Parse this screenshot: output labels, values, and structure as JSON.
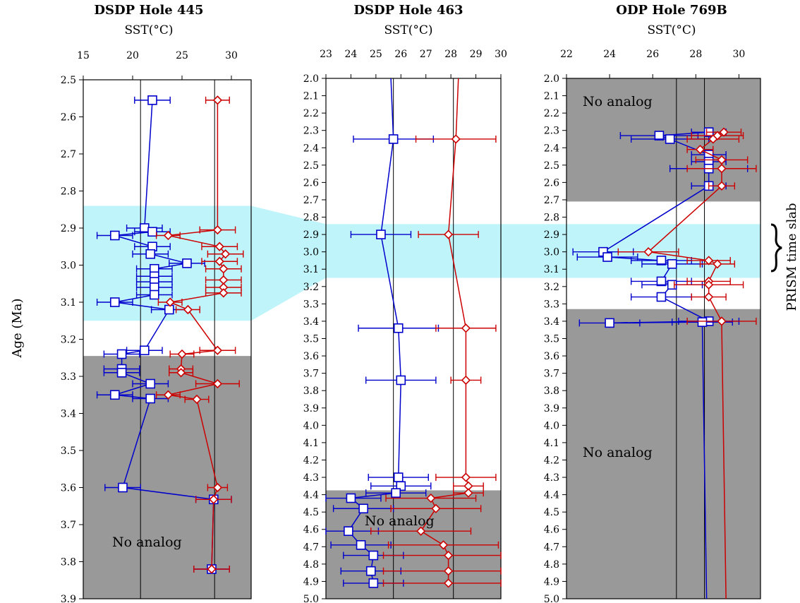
{
  "chart_data": [
    {
      "type": "line",
      "title": "DSDP Hole 445",
      "xlabel": "SST(°C)",
      "ylabel": "Age (Ma)",
      "xlim": [
        15,
        32
      ],
      "xticks": [
        15,
        20,
        25,
        30
      ],
      "ylim": [
        2.5,
        3.9
      ],
      "yticks": [
        "2.5",
        "2.6",
        "2.7",
        "2.8",
        "2.9",
        "3.0",
        "3.1",
        "3.2",
        "3.3",
        "3.4",
        "3.5",
        "3.6",
        "3.7",
        "3.8",
        "3.9"
      ],
      "ref_lines": [
        20.8,
        28.3
      ],
      "prism_band": [
        2.84,
        3.15
      ],
      "no_analog_from": 3.245,
      "annotations": [
        "No analog"
      ],
      "series": [
        {
          "color": "#0000cc",
          "marker": "square",
          "points": [
            {
              "y": 2.555,
              "x": 22.0,
              "err": 1.8
            },
            {
              "y": 2.9,
              "x": 21.2,
              "err": 1.8
            },
            {
              "y": 2.91,
              "x": 22.0,
              "err": 1.8
            },
            {
              "y": 2.92,
              "x": 18.2,
              "err": 1.8
            },
            {
              "y": 2.95,
              "x": 22.0,
              "err": 1.8
            },
            {
              "y": 2.97,
              "x": 21.8,
              "err": 1.8
            },
            {
              "y": 2.995,
              "x": 25.5,
              "err": 1.8
            },
            {
              "y": 3.01,
              "x": 22.2,
              "err": 1.8
            },
            {
              "y": 3.03,
              "x": 22.2,
              "err": 1.8
            },
            {
              "y": 3.045,
              "x": 22.2,
              "err": 1.8
            },
            {
              "y": 3.06,
              "x": 22.2,
              "err": 1.8
            },
            {
              "y": 3.08,
              "x": 22.2,
              "err": 1.8
            },
            {
              "y": 3.1,
              "x": 18.2,
              "err": 1.8
            },
            {
              "y": 3.12,
              "x": 23.7,
              "err": 1.8
            },
            {
              "y": 3.23,
              "x": 21.2,
              "err": 1.8
            },
            {
              "y": 3.24,
              "x": 18.9,
              "err": 1.8
            },
            {
              "y": 3.28,
              "x": 18.9,
              "err": 1.8
            },
            {
              "y": 3.29,
              "x": 18.9,
              "err": 1.8
            },
            {
              "y": 3.32,
              "x": 21.8,
              "err": 1.8
            },
            {
              "y": 3.35,
              "x": 18.2,
              "err": 1.8
            },
            {
              "y": 3.36,
              "x": 21.8,
              "err": 1.8
            },
            {
              "y": 3.6,
              "x": 19.0,
              "err": 1.8
            },
            {
              "y": 3.632,
              "x": 28.2,
              "err": 1.8
            },
            {
              "y": 3.82,
              "x": 28.0,
              "err": 1.8
            }
          ]
        },
        {
          "color": "#cc0000",
          "marker": "diamond",
          "points": [
            {
              "y": 2.555,
              "x": 28.6,
              "err": 1.2
            },
            {
              "y": 2.905,
              "x": 28.6,
              "err": 1.8
            },
            {
              "y": 2.92,
              "x": 23.6,
              "err": 1.2
            },
            {
              "y": 2.95,
              "x": 28.8,
              "err": 1.8
            },
            {
              "y": 2.97,
              "x": 29.4,
              "err": 1.8
            },
            {
              "y": 2.99,
              "x": 28.8,
              "err": 1.8
            },
            {
              "y": 3.01,
              "x": 29.2,
              "err": 1.8
            },
            {
              "y": 3.04,
              "x": 29.2,
              "err": 1.8
            },
            {
              "y": 3.06,
              "x": 29.2,
              "err": 1.8
            },
            {
              "y": 3.075,
              "x": 29.2,
              "err": 1.8
            },
            {
              "y": 3.1,
              "x": 23.8,
              "err": 1.2
            },
            {
              "y": 3.12,
              "x": 25.6,
              "err": 1.2
            },
            {
              "y": 3.23,
              "x": 28.6,
              "err": 1.8
            },
            {
              "y": 3.24,
              "x": 25.0,
              "err": 1.2
            },
            {
              "y": 3.28,
              "x": 24.9,
              "err": 1.2
            },
            {
              "y": 3.29,
              "x": 24.9,
              "err": 1.2
            },
            {
              "y": 3.32,
              "x": 28.6,
              "err": 2.2
            },
            {
              "y": 3.35,
              "x": 23.6,
              "err": 1.2
            },
            {
              "y": 3.362,
              "x": 26.5,
              "err": 1.2
            },
            {
              "y": 3.6,
              "x": 28.6,
              "err": 1.0
            },
            {
              "y": 3.632,
              "x": 28.2,
              "err": 1.8
            },
            {
              "y": 3.82,
              "x": 28.0,
              "err": 1.8
            }
          ]
        }
      ]
    },
    {
      "type": "line",
      "title": "DSDP Hole 463",
      "xlabel": "SST(°C)",
      "xlim": [
        23,
        30
      ],
      "xticks": [
        23,
        24,
        25,
        26,
        27,
        28,
        29,
        30
      ],
      "ylim": [
        2.0,
        5.0
      ],
      "yticks": [
        "2.0",
        "2.1",
        "2.2",
        "2.3",
        "2.4",
        "2.5",
        "2.6",
        "2.7",
        "2.8",
        "2.9",
        "3.0",
        "3.1",
        "3.2",
        "3.3",
        "3.4",
        "3.5",
        "3.6",
        "3.7",
        "3.8",
        "3.9",
        "4.0",
        "4.1",
        "4.2",
        "4.3",
        "4.4",
        "4.5",
        "4.6",
        "4.7",
        "4.8",
        "4.9",
        "5.0"
      ],
      "ref_lines": [
        25.7,
        28.1
      ],
      "prism_band": [
        2.84,
        3.15
      ],
      "no_analog_from": 4.375,
      "annotations": [
        "No analog"
      ],
      "series": [
        {
          "color": "#0000cc",
          "marker": "square",
          "points": [
            {
              "y": 2.35,
              "x": 25.7,
              "err": 1.6
            },
            {
              "y": 2.9,
              "x": 25.2,
              "err": 1.2
            },
            {
              "y": 3.44,
              "x": 25.9,
              "err": 1.6
            },
            {
              "y": 3.74,
              "x": 26.0,
              "err": 1.4
            },
            {
              "y": 4.3,
              "x": 25.9,
              "err": 1.2
            },
            {
              "y": 4.35,
              "x": 26.0,
              "err": 1.2
            },
            {
              "y": 4.39,
              "x": 25.8,
              "err": 1.2
            },
            {
              "y": 4.42,
              "x": 24.0,
              "err": 1.2
            },
            {
              "y": 4.48,
              "x": 24.5,
              "err": 1.2
            },
            {
              "y": 4.61,
              "x": 23.9,
              "err": 1.2
            },
            {
              "y": 4.69,
              "x": 24.4,
              "err": 1.2
            },
            {
              "y": 4.75,
              "x": 24.9,
              "err": 1.2
            },
            {
              "y": 4.84,
              "x": 24.8,
              "err": 1.2
            },
            {
              "y": 4.91,
              "x": 24.9,
              "err": 1.2
            }
          ],
          "leading_line": [
            {
              "y": 2.0,
              "x": 25.6
            }
          ]
        },
        {
          "color": "#cc0000",
          "marker": "diamond",
          "points": [
            {
              "y": 2.35,
              "x": 28.2,
              "err": 1.6
            },
            {
              "y": 2.9,
              "x": 27.9,
              "err": 1.2
            },
            {
              "y": 3.44,
              "x": 28.6,
              "err": 1.2
            },
            {
              "y": 3.74,
              "x": 28.6,
              "err": 0.6
            },
            {
              "y": 4.3,
              "x": 28.6,
              "err": 1.2
            },
            {
              "y": 4.35,
              "x": 28.7,
              "err": 0.6
            },
            {
              "y": 4.39,
              "x": 28.7,
              "err": 0.6
            },
            {
              "y": 4.42,
              "x": 27.2,
              "err": 1.8
            },
            {
              "y": 4.48,
              "x": 27.4,
              "err": 1.8
            },
            {
              "y": 4.61,
              "x": 26.8,
              "err": 2.0
            },
            {
              "y": 4.69,
              "x": 27.7,
              "err": 2.2
            },
            {
              "y": 4.75,
              "x": 27.9,
              "err": 2.6
            },
            {
              "y": 4.84,
              "x": 27.9,
              "err": 2.6
            },
            {
              "y": 4.91,
              "x": 27.9,
              "err": 2.6
            }
          ],
          "leading_line": [
            {
              "y": 2.0,
              "x": 28.3
            }
          ]
        }
      ]
    },
    {
      "type": "line",
      "title": "ODP Hole 769B",
      "xlabel": "SST(°C)",
      "xlim": [
        22,
        31
      ],
      "xticks": [
        22,
        24,
        26,
        28,
        30
      ],
      "ylim": [
        2.0,
        5.0
      ],
      "yticks": [
        "2.0",
        "2.1",
        "2.2",
        "2.3",
        "2.4",
        "2.5",
        "2.6",
        "2.7",
        "2.8",
        "2.9",
        "3.0",
        "3.1",
        "3.2",
        "3.3",
        "3.4",
        "3.5",
        "3.6",
        "3.7",
        "3.8",
        "3.9",
        "4.0",
        "4.1",
        "4.2",
        "4.3",
        "4.4",
        "4.5",
        "4.6",
        "4.7",
        "4.8",
        "4.9",
        "5.0"
      ],
      "ref_lines": [
        27.1,
        28.4
      ],
      "prism_band": [
        2.84,
        3.15
      ],
      "no_analog_bands": [
        [
          2.0,
          2.71
        ],
        [
          3.33,
          5.0
        ]
      ],
      "annotations": [
        "No analog",
        "No analog",
        "PRISM time slab"
      ],
      "series": [
        {
          "color": "#0000cc",
          "marker": "square",
          "points": [
            {
              "y": 2.31,
              "x": 28.6,
              "err": 0.8
            },
            {
              "y": 2.33,
              "x": 26.3,
              "err": 1.8
            },
            {
              "y": 2.35,
              "x": 26.8,
              "err": 1.8
            },
            {
              "y": 2.44,
              "x": 28.6,
              "err": 0.8
            },
            {
              "y": 2.48,
              "x": 28.6,
              "err": 0.8
            },
            {
              "y": 2.52,
              "x": 28.6,
              "err": 1.8
            },
            {
              "y": 2.62,
              "x": 28.6,
              "err": 0.8
            },
            {
              "y": 3.0,
              "x": 23.7,
              "err": 1.4
            },
            {
              "y": 3.03,
              "x": 23.9,
              "err": 1.4
            },
            {
              "y": 3.05,
              "x": 26.4,
              "err": 1.4
            },
            {
              "y": 3.07,
              "x": 26.9,
              "err": 1.4
            },
            {
              "y": 3.17,
              "x": 26.4,
              "err": 1.4
            },
            {
              "y": 3.19,
              "x": 26.9,
              "err": 1.4
            },
            {
              "y": 3.26,
              "x": 26.4,
              "err": 1.4
            },
            {
              "y": 3.4,
              "x": 28.6,
              "err": 1.4
            },
            {
              "y": 3.41,
              "x": 24.0,
              "err": 1.4
            },
            {
              "y": 3.405,
              "x": 28.3,
              "err": 1.4
            }
          ],
          "trailing_line": [
            {
              "y": 3.42,
              "x": 28.3
            },
            {
              "y": 5.0,
              "x": 28.5
            }
          ]
        },
        {
          "color": "#cc0000",
          "marker": "diamond",
          "points": [
            {
              "y": 2.31,
              "x": 29.3,
              "err": 0.8
            },
            {
              "y": 2.33,
              "x": 29.0,
              "err": 1.2
            },
            {
              "y": 2.35,
              "x": 28.8,
              "err": 1.2
            },
            {
              "y": 2.41,
              "x": 28.2,
              "err": 0.6
            },
            {
              "y": 2.47,
              "x": 29.2,
              "err": 1.2
            },
            {
              "y": 2.52,
              "x": 29.2,
              "err": 1.6
            },
            {
              "y": 2.62,
              "x": 29.2,
              "err": 0.6
            },
            {
              "y": 3.0,
              "x": 25.8,
              "err": 1.4
            },
            {
              "y": 3.05,
              "x": 28.6,
              "err": 1.0
            },
            {
              "y": 3.07,
              "x": 29.0,
              "err": 0.8
            },
            {
              "y": 3.17,
              "x": 28.6,
              "err": 1.0
            },
            {
              "y": 3.19,
              "x": 28.6,
              "err": 1.6
            },
            {
              "y": 3.26,
              "x": 28.6,
              "err": 0.8
            },
            {
              "y": 3.4,
              "x": 29.2,
              "err": 1.6
            }
          ],
          "trailing_line": [
            {
              "y": 3.42,
              "x": 29.2
            },
            {
              "y": 5.0,
              "x": 29.4
            }
          ]
        }
      ]
    }
  ]
}
